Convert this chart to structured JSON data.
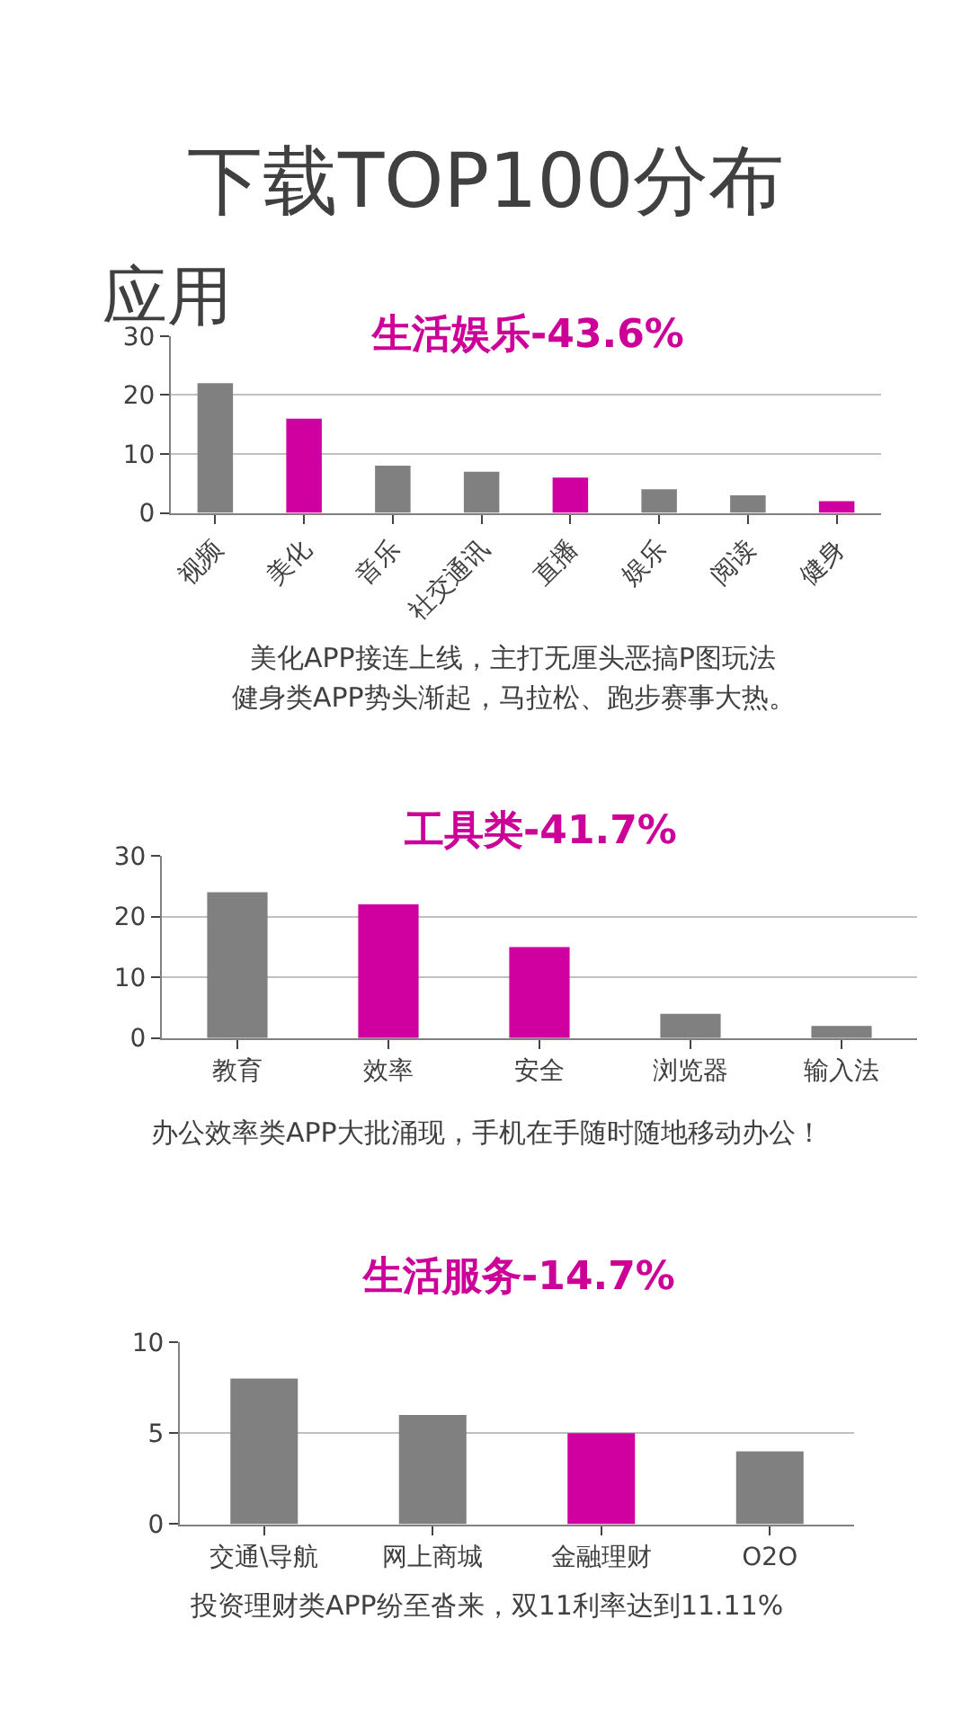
{
  "chart_data": [
    {
      "type": "bar",
      "title": "下载TOP100分布",
      "subtitle": "生活娱乐-43.6%",
      "annotations": [
        "应用",
        "美化APP接连上线，主打无厘头恶搞P图玩法",
        "健身类APP势头渐起，马拉松、跑步赛事大热。"
      ],
      "categories": [
        "视频",
        "美化",
        "音乐",
        "社交通讯",
        "直播",
        "娱乐",
        "阅读",
        "健身"
      ],
      "values": [
        22,
        16,
        8,
        7,
        6,
        4,
        3,
        2
      ],
      "colors": [
        "#808080",
        "#d000a0",
        "#808080",
        "#808080",
        "#d000a0",
        "#808080",
        "#808080",
        "#d000a0"
      ],
      "ylim": [
        0,
        30
      ],
      "yticks": [
        0,
        10,
        20,
        30
      ],
      "grid": "y"
    },
    {
      "type": "bar",
      "subtitle": "工具类-41.7%",
      "annotations": [
        "办公效率类APP大批涌现，手机在手随时随地移动办公！"
      ],
      "categories": [
        "教育",
        "效率",
        "安全",
        "浏览器",
        "输入法"
      ],
      "values": [
        24,
        22,
        15,
        4,
        2
      ],
      "colors": [
        "#808080",
        "#d000a0",
        "#d000a0",
        "#808080",
        "#808080"
      ],
      "ylim": [
        0,
        30
      ],
      "yticks": [
        0,
        10,
        20,
        30
      ],
      "grid": "y"
    },
    {
      "type": "bar",
      "subtitle": "生活服务-14.7%",
      "annotations": [
        "投资理财类APP纷至沓来，双11利率达到11.11%"
      ],
      "categories": [
        "交通\\导航",
        "网上商城",
        "金融理财",
        "O2O"
      ],
      "values": [
        8,
        6,
        5,
        4
      ],
      "colors": [
        "#808080",
        "#808080",
        "#d000a0",
        "#808080"
      ],
      "ylim": [
        0,
        10
      ],
      "yticks": [
        0,
        5,
        10
      ],
      "grid": "y"
    }
  ]
}
